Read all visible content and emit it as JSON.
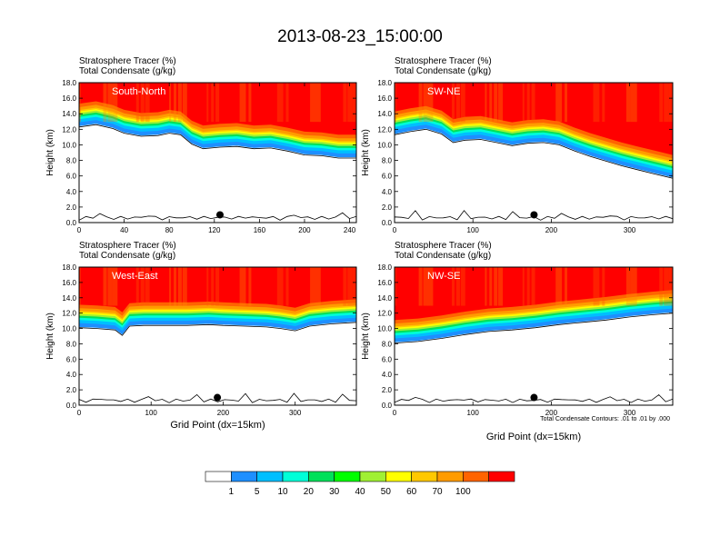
{
  "title": "2013-08-23_15:00:00",
  "chart_data": [
    {
      "type": "heatmap",
      "label": "South-North",
      "subtitle_line1": "Stratosphere Tracer   (%)",
      "subtitle_line2": "Total Condensate   (g/kg)",
      "ylabel": "Height (km)",
      "xlabel": "",
      "xlim": [
        0,
        246
      ],
      "ylim": [
        0,
        18
      ],
      "xticks": [
        0,
        40,
        80,
        120,
        160,
        200,
        240
      ],
      "yticks": [
        "0.0",
        "2.0",
        "4.0",
        "6.0",
        "8.0",
        "10.0",
        "12.0",
        "14.0",
        "16.0",
        "18.0"
      ],
      "tropopause_km": [
        [
          0,
          14.6
        ],
        [
          15,
          14.9
        ],
        [
          30,
          14.4
        ],
        [
          40,
          13.8
        ],
        [
          55,
          13.4
        ],
        [
          70,
          13.5
        ],
        [
          80,
          13.8
        ],
        [
          90,
          13.6
        ],
        [
          100,
          12.4
        ],
        [
          110,
          11.8
        ],
        [
          125,
          12.0
        ],
        [
          140,
          12.1
        ],
        [
          155,
          11.8
        ],
        [
          170,
          11.9
        ],
        [
          185,
          11.5
        ],
        [
          200,
          11.0
        ],
        [
          215,
          10.9
        ],
        [
          230,
          10.6
        ],
        [
          246,
          10.6
        ]
      ],
      "marker": {
        "x": 125,
        "y": 1.0
      }
    },
    {
      "type": "heatmap",
      "label": "SW-NE",
      "subtitle_line1": "Stratosphere Tracer   (%)",
      "subtitle_line2": "Total Condensate   (g/kg)",
      "ylabel": "Height (km)",
      "xlabel": "",
      "xlim": [
        0,
        355
      ],
      "ylim": [
        0,
        18
      ],
      "xticks": [
        0,
        100,
        200,
        300
      ],
      "yticks": [
        "0.0",
        "2.0",
        "4.0",
        "6.0",
        "8.0",
        "10.0",
        "12.0",
        "14.0",
        "16.0",
        "18.0"
      ],
      "tropopause_km": [
        [
          0,
          13.6
        ],
        [
          20,
          14.0
        ],
        [
          40,
          14.3
        ],
        [
          60,
          13.7
        ],
        [
          75,
          12.6
        ],
        [
          90,
          12.9
        ],
        [
          110,
          13.0
        ],
        [
          130,
          12.6
        ],
        [
          150,
          12.2
        ],
        [
          170,
          12.5
        ],
        [
          190,
          12.6
        ],
        [
          210,
          12.3
        ],
        [
          230,
          11.5
        ],
        [
          250,
          10.8
        ],
        [
          270,
          10.2
        ],
        [
          290,
          9.6
        ],
        [
          310,
          9.1
        ],
        [
          330,
          8.6
        ],
        [
          355,
          8.0
        ]
      ],
      "marker": {
        "x": 178,
        "y": 1.0
      }
    },
    {
      "type": "heatmap",
      "label": "West-East",
      "subtitle_line1": "Stratosphere Tracer   (%)",
      "subtitle_line2": "Total Condensate   (g/kg)",
      "ylabel": "Height (km)",
      "xlabel": "Grid Point (dx=15km)",
      "xlim": [
        0,
        385
      ],
      "ylim": [
        0,
        18
      ],
      "xticks": [
        0,
        100,
        200,
        300
      ],
      "yticks": [
        "0.0",
        "2.0",
        "4.0",
        "6.0",
        "8.0",
        "10.0",
        "12.0",
        "14.0",
        "16.0",
        "18.0"
      ],
      "tropopause_km": [
        [
          0,
          12.4
        ],
        [
          25,
          12.3
        ],
        [
          50,
          12.1
        ],
        [
          60,
          11.4
        ],
        [
          70,
          12.6
        ],
        [
          90,
          12.7
        ],
        [
          120,
          12.7
        ],
        [
          150,
          12.7
        ],
        [
          180,
          12.8
        ],
        [
          200,
          12.7
        ],
        [
          230,
          12.6
        ],
        [
          260,
          12.5
        ],
        [
          280,
          12.3
        ],
        [
          300,
          12.0
        ],
        [
          320,
          12.6
        ],
        [
          350,
          12.9
        ],
        [
          385,
          13.1
        ]
      ],
      "marker": {
        "x": 192,
        "y": 1.0
      }
    },
    {
      "type": "heatmap",
      "label": "NW-SE",
      "subtitle_line1": "Stratosphere Tracer   (%)",
      "subtitle_line2": "Total Condensate   (g/kg)",
      "ylabel": "Height (km)",
      "xlabel": "Grid Point (dx=15km)",
      "xlim": [
        0,
        355
      ],
      "ylim": [
        0,
        18
      ],
      "xticks": [
        0,
        100,
        200,
        300
      ],
      "yticks": [
        "0.0",
        "2.0",
        "4.0",
        "6.0",
        "8.0",
        "10.0",
        "12.0",
        "14.0",
        "16.0",
        "18.0"
      ],
      "tropopause_km": [
        [
          0,
          10.4
        ],
        [
          30,
          10.6
        ],
        [
          60,
          11.0
        ],
        [
          90,
          11.5
        ],
        [
          120,
          11.9
        ],
        [
          150,
          12.1
        ],
        [
          180,
          12.4
        ],
        [
          210,
          12.8
        ],
        [
          240,
          13.1
        ],
        [
          270,
          13.4
        ],
        [
          300,
          13.8
        ],
        [
          330,
          14.1
        ],
        [
          355,
          14.3
        ]
      ],
      "marker": {
        "x": 178,
        "y": 1.0
      }
    }
  ],
  "contour_note": "Total Condensate Contours: .01 to .01 by .000",
  "colorbar": {
    "labels": [
      "1",
      "5",
      "10",
      "20",
      "30",
      "40",
      "50",
      "60",
      "70",
      "100"
    ],
    "colors": [
      "#ffffff",
      "#1e8fff",
      "#00bfff",
      "#00ffd8",
      "#00e05a",
      "#00ff00",
      "#a0f033",
      "#ffff00",
      "#ffc800",
      "#ff9b00",
      "#ff6400",
      "#ff0000"
    ]
  }
}
